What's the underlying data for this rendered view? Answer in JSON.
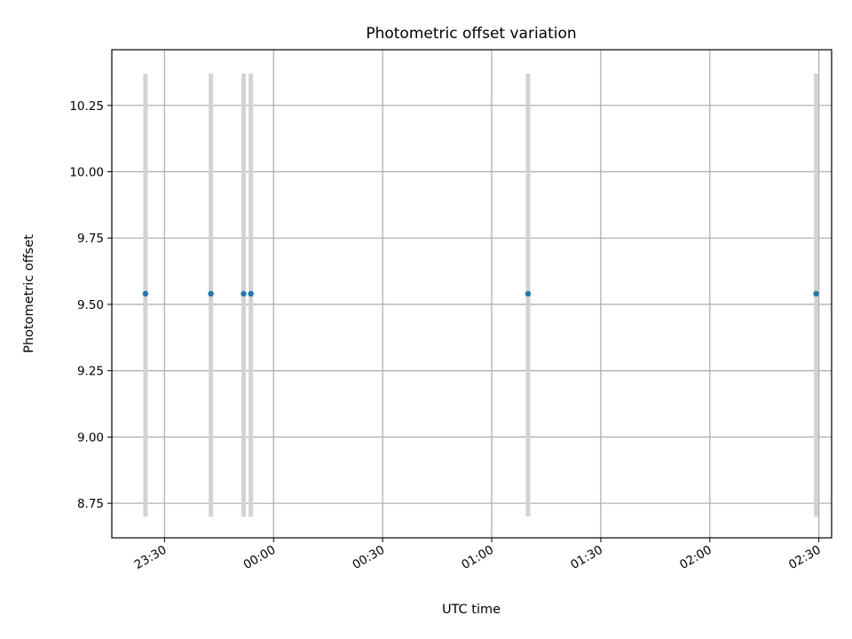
{
  "chart_data": {
    "type": "scatter",
    "title": "Photometric offset variation",
    "xlabel": "UTC time",
    "ylabel": "Photometric offset",
    "x_ticks": [
      "23:30",
      "00:00",
      "00:30",
      "01:00",
      "01:30",
      "02:00",
      "02:30"
    ],
    "y_ticks": [
      "8.75",
      "9.00",
      "9.25",
      "9.50",
      "9.75",
      "10.00",
      "10.25"
    ],
    "xlim": [
      "23:15:30",
      "02:33:30"
    ],
    "ylim": [
      8.62,
      10.46
    ],
    "grid": true,
    "points": [
      {
        "x": "23:24:45",
        "y": 9.54,
        "yerr_low": 8.7,
        "yerr_high": 10.37
      },
      {
        "x": "23:42:45",
        "y": 9.54,
        "yerr_low": 8.7,
        "yerr_high": 10.37
      },
      {
        "x": "23:51:45",
        "y": 9.54,
        "yerr_low": 8.7,
        "yerr_high": 10.37
      },
      {
        "x": "23:53:45",
        "y": 9.54,
        "yerr_low": 8.7,
        "yerr_high": 10.37
      },
      {
        "x": "01:10:00",
        "y": 9.54,
        "yerr_low": 8.7,
        "yerr_high": 10.37
      },
      {
        "x": "02:29:15",
        "y": 9.54,
        "yerr_low": 8.7,
        "yerr_high": 10.37
      }
    ],
    "colors": {
      "point": "#1f77b4",
      "errorbar": "#d3d3d3",
      "grid": "#b0b0b0"
    }
  }
}
